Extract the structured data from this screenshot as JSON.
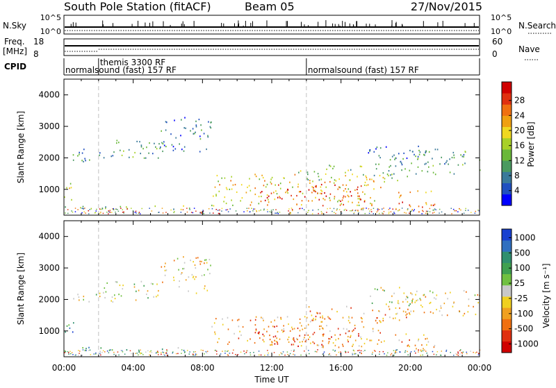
{
  "header": {
    "station": "South Pole Station (fitACF)",
    "beam": "Beam 05",
    "date": "27/Nov/2015"
  },
  "aux_panels": {
    "nsky_label": "N.Sky",
    "nsky_ticks": [
      "10^5",
      "10^0"
    ],
    "nsearch_label": "N.Search",
    "nsearch_ticks": [
      "10^5",
      "10^0"
    ],
    "freq_label": "Freq.",
    "freq_unit": "[MHz]",
    "freq_ticks": [
      "18",
      "8"
    ],
    "nave_label": "Nave",
    "nave_ticks": [
      "60",
      "0"
    ],
    "cpid_label": "CPID",
    "cpid_segments": [
      {
        "start_hour": 0.0,
        "text": "normalsound (fast) 157 RF"
      },
      {
        "start_hour": 2.0,
        "text": "themis 3300 RF"
      },
      {
        "start_hour": 14.0,
        "text": "normalsound (fast) 157 RF"
      }
    ]
  },
  "panels": {
    "power": {
      "ylabel": "Slant Range [km]",
      "cbar_label": "Power [dB]",
      "cbar_ticks": [
        "28",
        "24",
        "20",
        "16",
        "12",
        "8",
        "4"
      ],
      "cbar_colors": [
        "#0000ff",
        "#2050c0",
        "#3a7a9a",
        "#4a9a60",
        "#6ab83a",
        "#a8d028",
        "#f0d820",
        "#f0a010",
        "#f07010",
        "#e03010",
        "#d00000"
      ]
    },
    "velocity": {
      "ylabel": "Slant Range [km]",
      "cbar_label": "Velocity [m s⁻¹]",
      "cbar_ticks": [
        "1000",
        "500",
        "100",
        "25",
        "-25",
        "-100",
        "-500",
        "-1000"
      ],
      "cbar_colors": [
        "#1840d0",
        "#3070c0",
        "#2f8f6f",
        "#3fa050",
        "#70c040",
        "#c8c8c8",
        "#f0d020",
        "#f0a020",
        "#f07010",
        "#e03010",
        "#d00000"
      ]
    }
  },
  "xaxis": {
    "label": "Time UT",
    "ticks": [
      "00:00",
      "04:00",
      "08:00",
      "12:00",
      "16:00",
      "20:00",
      "00:00"
    ]
  },
  "chart_data": {
    "type": "heatmap",
    "x_range_hours": [
      0,
      24
    ],
    "y_range_km": [
      180,
      4500
    ],
    "y_ticks": [
      1000,
      2000,
      3000,
      4000
    ],
    "x_ticks_hours": [
      0,
      4,
      8,
      12,
      16,
      20,
      24
    ],
    "dashed_lines_hours": [
      2.0,
      14.0
    ],
    "power_regions": [
      {
        "t0": 0.0,
        "t1": 0.6,
        "r0": 600,
        "r1": 1300,
        "level": 5
      },
      {
        "t0": 0.2,
        "t1": 2.8,
        "r0": 1900,
        "r1": 2300,
        "level": 2
      },
      {
        "t0": 2.0,
        "t1": 5.5,
        "r0": 2000,
        "r1": 2600,
        "level": 3
      },
      {
        "t0": 5.5,
        "t1": 8.5,
        "r0": 2200,
        "r1": 3400,
        "level": 2
      },
      {
        "t0": 0.0,
        "t1": 7.5,
        "r0": 350,
        "r1": 500,
        "level": 4
      },
      {
        "t0": 8.5,
        "t1": 18.5,
        "r0": 500,
        "r1": 1500,
        "level": 6
      },
      {
        "t0": 11.0,
        "t1": 17.5,
        "r0": 500,
        "r1": 1200,
        "level": 9
      },
      {
        "t0": 13.5,
        "t1": 20.0,
        "r0": 1300,
        "r1": 1800,
        "level": 4
      },
      {
        "t0": 17.5,
        "t1": 21.0,
        "r0": 1800,
        "r1": 2400,
        "level": 2
      },
      {
        "t0": 19.0,
        "t1": 24.0,
        "r0": 1500,
        "r1": 2300,
        "level": 3
      },
      {
        "t0": 19.0,
        "t1": 21.5,
        "r0": 300,
        "r1": 1000,
        "level": 8
      }
    ],
    "velocity_regions": [
      {
        "t0": 0.0,
        "t1": 0.6,
        "r0": 600,
        "r1": 1300,
        "level": 2
      },
      {
        "t0": 0.2,
        "t1": 2.8,
        "r0": 1900,
        "r1": 2300,
        "level": 5
      },
      {
        "t0": 2.0,
        "t1": 5.5,
        "r0": 2000,
        "r1": 2600,
        "level": 5
      },
      {
        "t0": 5.5,
        "t1": 8.5,
        "r0": 2200,
        "r1": 3400,
        "level": 6
      },
      {
        "t0": 0.0,
        "t1": 7.5,
        "r0": 350,
        "r1": 500,
        "level": 3
      },
      {
        "t0": 8.5,
        "t1": 18.5,
        "r0": 500,
        "r1": 1500,
        "level": 7
      },
      {
        "t0": 11.0,
        "t1": 17.5,
        "r0": 500,
        "r1": 1200,
        "level": 8
      },
      {
        "t0": 13.5,
        "t1": 20.0,
        "r0": 1300,
        "r1": 1800,
        "level": 7
      },
      {
        "t0": 17.5,
        "t1": 21.0,
        "r0": 1800,
        "r1": 2400,
        "level": 5
      },
      {
        "t0": 19.0,
        "t1": 24.0,
        "r0": 1500,
        "r1": 2300,
        "level": 6
      },
      {
        "t0": 19.0,
        "t1": 21.5,
        "r0": 300,
        "r1": 1000,
        "level": 7
      }
    ]
  }
}
